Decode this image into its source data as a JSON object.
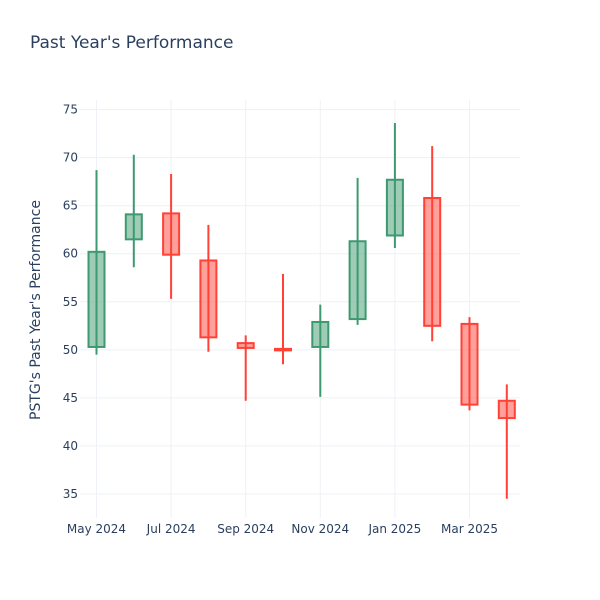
{
  "chart_data": {
    "type": "candlestick",
    "title": "Past Year's Performance",
    "xlabel": "",
    "ylabel": "PSTG's Past Year's Performance",
    "ylim": [
      32.5,
      76
    ],
    "yticks": [
      35,
      40,
      45,
      50,
      55,
      60,
      65,
      70,
      75
    ],
    "xtick_labels": [
      "May 2024",
      "Jul 2024",
      "Sep 2024",
      "Nov 2024",
      "Jan 2025",
      "Mar 2025"
    ],
    "grid": true,
    "colors": {
      "increasing": "#3d9970",
      "decreasing": "#ff4136"
    },
    "candles": [
      {
        "period": "May 2024",
        "open": 50.3,
        "high": 68.7,
        "low": 49.5,
        "close": 60.2
      },
      {
        "period": "Jun 2024",
        "open": 61.5,
        "high": 70.3,
        "low": 58.6,
        "close": 64.1
      },
      {
        "period": "Jul 2024",
        "open": 64.2,
        "high": 68.3,
        "low": 55.3,
        "close": 59.9
      },
      {
        "period": "Aug 2024",
        "open": 59.3,
        "high": 63.0,
        "low": 49.8,
        "close": 51.3
      },
      {
        "period": "Sep 2024",
        "open": 50.7,
        "high": 51.5,
        "low": 44.7,
        "close": 50.2
      },
      {
        "period": "Oct 2024",
        "open": 50.1,
        "high": 57.9,
        "low": 48.5,
        "close": 50.0
      },
      {
        "period": "Nov 2024",
        "open": 50.3,
        "high": 54.7,
        "low": 45.1,
        "close": 52.9
      },
      {
        "period": "Dec 2024",
        "open": 53.2,
        "high": 67.9,
        "low": 52.6,
        "close": 61.3
      },
      {
        "period": "Jan 2025",
        "open": 61.9,
        "high": 73.6,
        "low": 60.6,
        "close": 67.7
      },
      {
        "period": "Feb 2025",
        "open": 65.8,
        "high": 71.2,
        "low": 50.9,
        "close": 52.5
      },
      {
        "period": "Mar 2025",
        "open": 52.7,
        "high": 53.4,
        "low": 43.7,
        "close": 44.3
      },
      {
        "period": "Apr 2025",
        "open": 44.7,
        "high": 46.4,
        "low": 34.5,
        "close": 42.9
      }
    ]
  }
}
